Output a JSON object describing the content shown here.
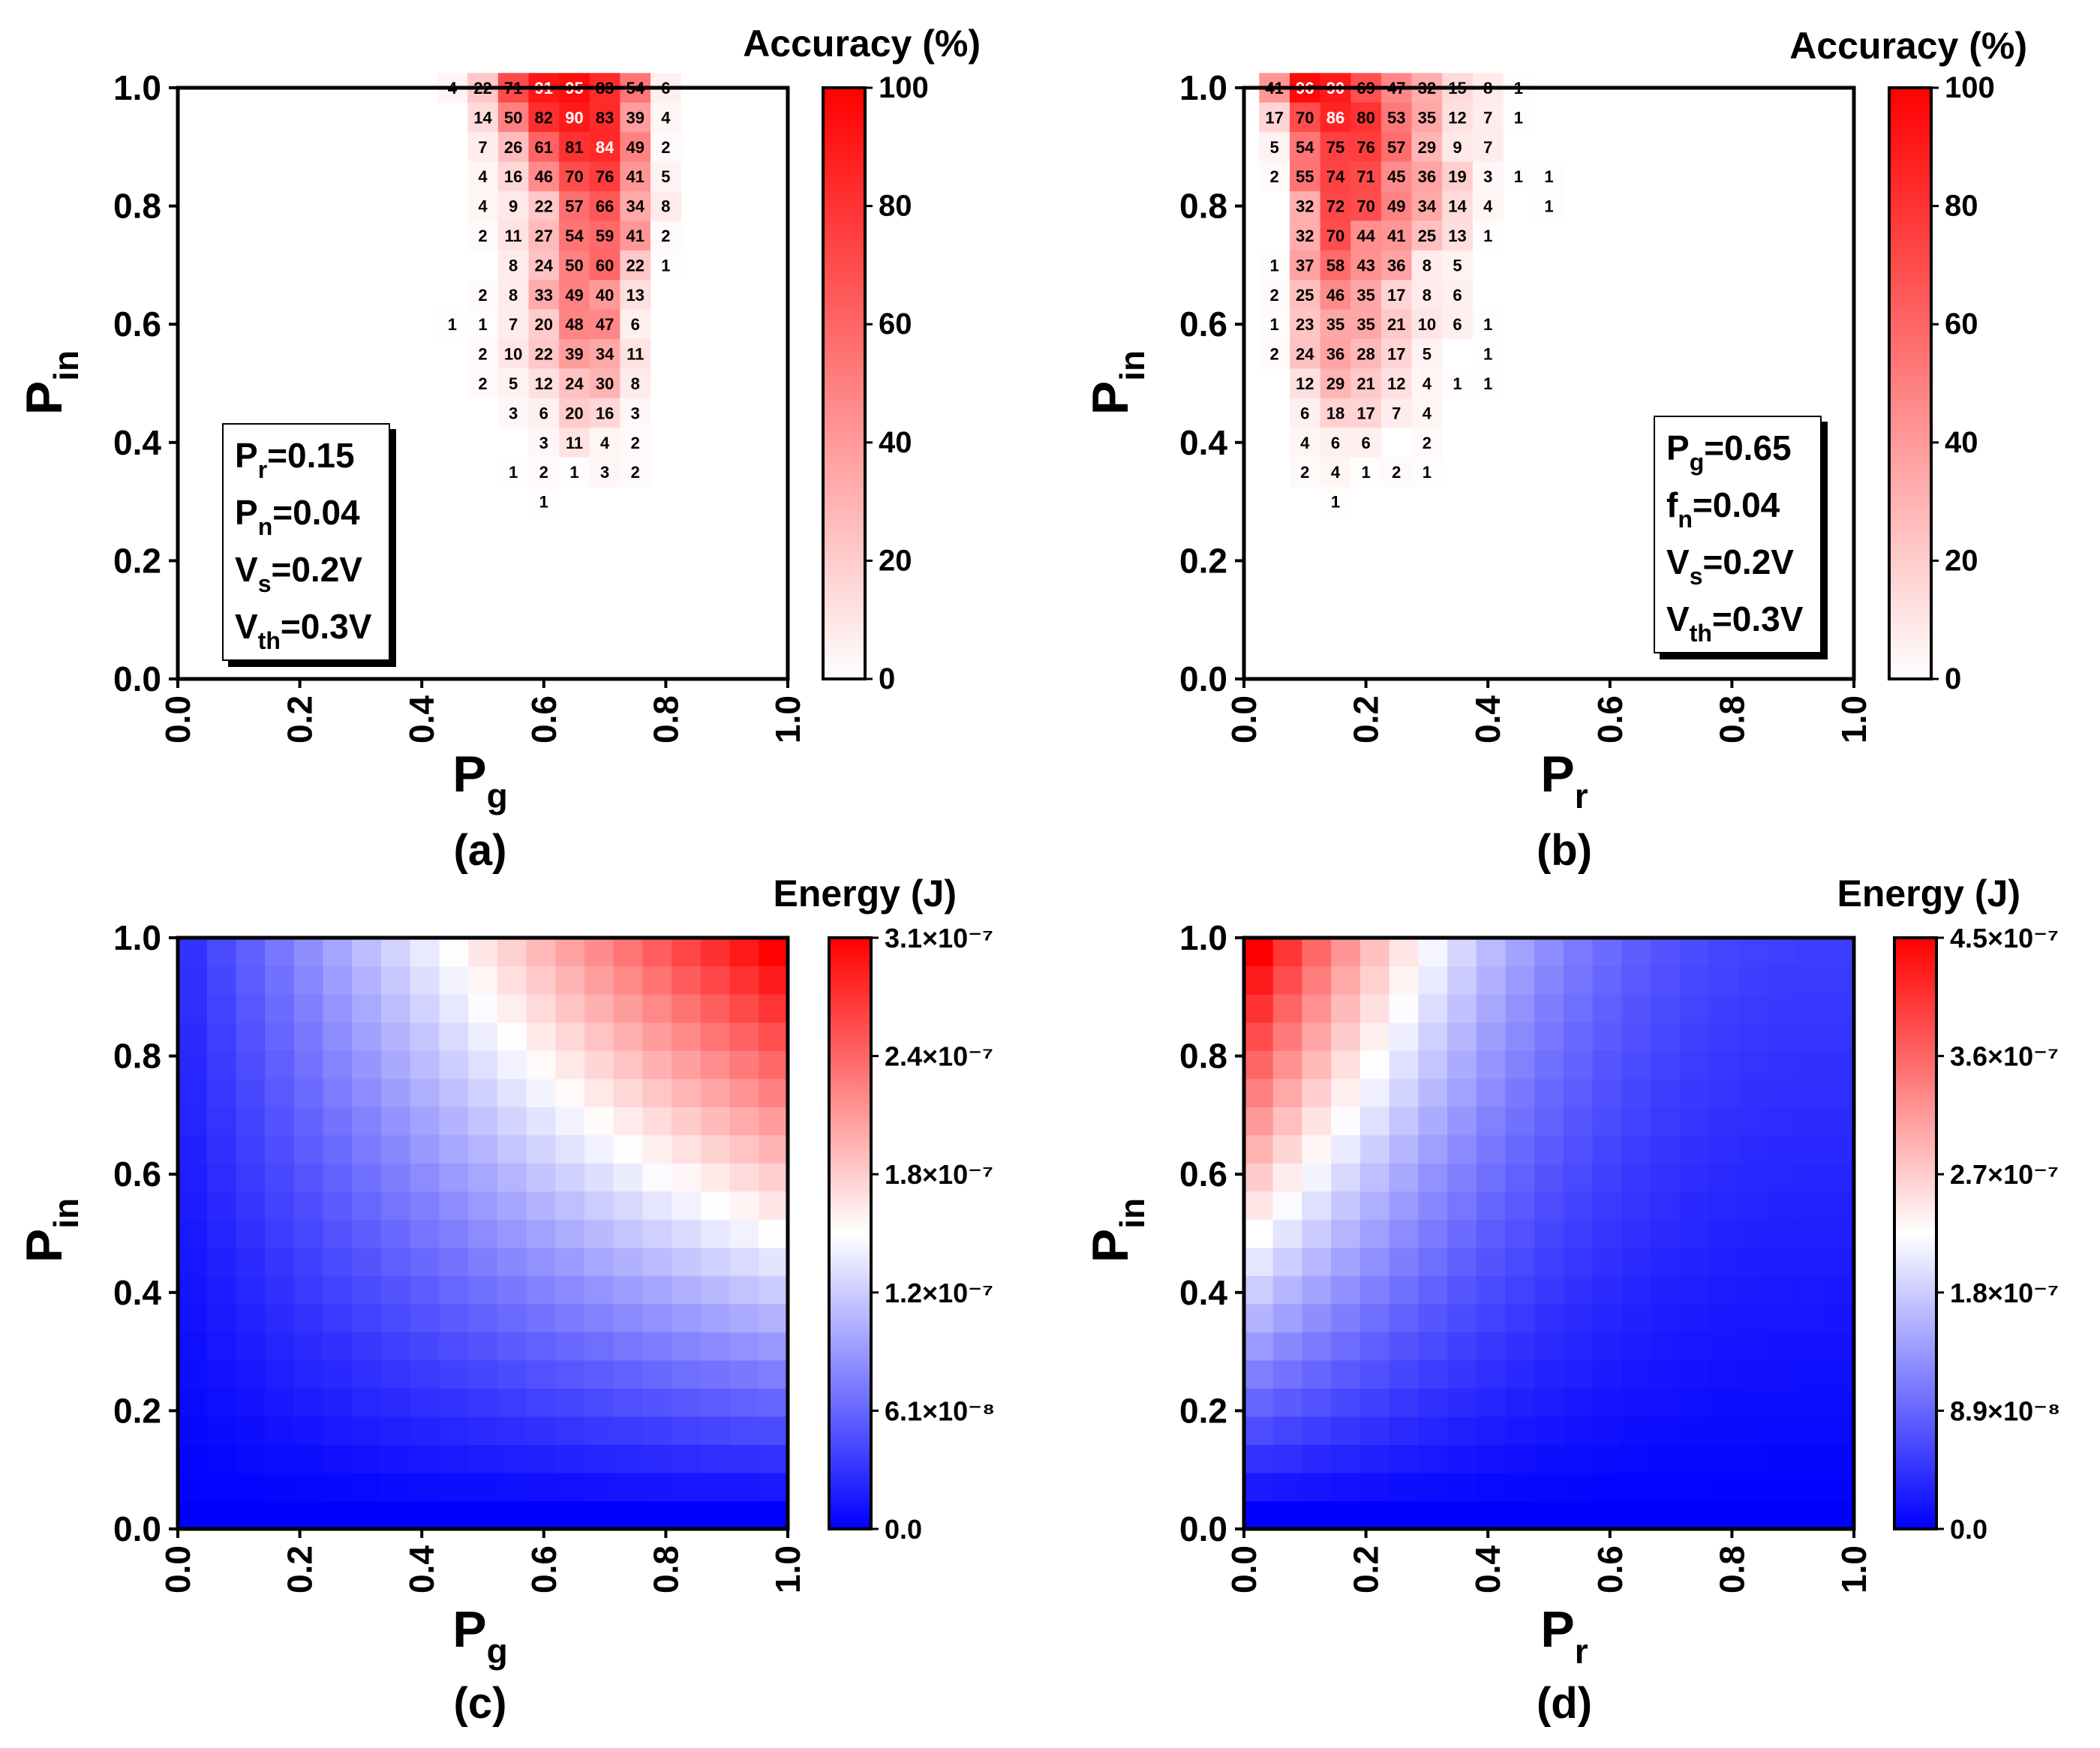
{
  "figure": {
    "panel_labels": [
      "(a)",
      "(b)",
      "(c)",
      "(d)"
    ]
  },
  "colors": {
    "red": "#ff0000",
    "white": "#ffffff",
    "blue": "#0000ff",
    "frame": "#000000"
  },
  "panels": {
    "a": {
      "colorbar_title": "Accuracy (%)",
      "colorbar_ticks": [
        "0",
        "20",
        "40",
        "60",
        "80",
        "100"
      ],
      "params": [
        {
          "base": "P",
          "sub": "r",
          "rest": "=0.15"
        },
        {
          "base": "P",
          "sub": "n",
          "rest": "=0.04"
        },
        {
          "base": "V",
          "sub": "s",
          "rest": "=0.2V"
        },
        {
          "base": "V",
          "sub": "th",
          "rest": "=0.3V"
        }
      ]
    },
    "b": {
      "colorbar_title": "Accuracy (%)",
      "colorbar_ticks": [
        "0",
        "20",
        "40",
        "60",
        "80",
        "100"
      ],
      "params": [
        {
          "base": "P",
          "sub": "g",
          "rest": "=0.65"
        },
        {
          "base": "f",
          "sub": "n",
          "rest": "=0.04"
        },
        {
          "base": "V",
          "sub": "s",
          "rest": "=0.2V"
        },
        {
          "base": "V",
          "sub": "th",
          "rest": "=0.3V"
        }
      ]
    },
    "c": {
      "colorbar_title": "Energy (J)",
      "colorbar_ticks": [
        "0.0",
        "6.1×10⁻⁸",
        "1.2×10⁻⁷",
        "1.8×10⁻⁷",
        "2.4×10⁻⁷",
        "3.1×10⁻⁷"
      ]
    },
    "d": {
      "colorbar_title": "Energy (J)",
      "colorbar_ticks": [
        "0.0",
        "8.9×10⁻⁸",
        "1.8×10⁻⁷",
        "2.7×10⁻⁷",
        "3.6×10⁻⁷",
        "4.5×10⁻⁷"
      ]
    }
  },
  "chart_data": [
    {
      "id": "a",
      "type": "heatmap",
      "title": "Accuracy (%)",
      "xlabel": "P_g",
      "ylabel": "P_in",
      "xlim": [
        0,
        1
      ],
      "ylim": [
        0,
        1
      ],
      "xticks": [
        "0.0",
        "0.2",
        "0.4",
        "0.6",
        "0.8",
        "1.0"
      ],
      "yticks": [
        "0.0",
        "0.2",
        "0.4",
        "0.6",
        "0.8",
        "1.0"
      ],
      "grid": "20x20 cells of width 0.05; cells not listed are 0 / empty",
      "cell_width": 0.05,
      "color_range": [
        0,
        100
      ],
      "colormap": "white-to-red",
      "rows": [
        {
          "y": 1.0,
          "x0": 0.45,
          "values": [
            4,
            22,
            71,
            91,
            95,
            83,
            54,
            6
          ]
        },
        {
          "y": 0.95,
          "x0": 0.5,
          "values": [
            14,
            50,
            82,
            90,
            83,
            39,
            4
          ]
        },
        {
          "y": 0.9,
          "x0": 0.5,
          "values": [
            7,
            26,
            61,
            81,
            84,
            49,
            2
          ]
        },
        {
          "y": 0.85,
          "x0": 0.5,
          "values": [
            4,
            16,
            46,
            70,
            76,
            41,
            5
          ]
        },
        {
          "y": 0.8,
          "x0": 0.5,
          "values": [
            4,
            9,
            22,
            57,
            66,
            34,
            8
          ]
        },
        {
          "y": 0.75,
          "x0": 0.5,
          "values": [
            2,
            11,
            27,
            54,
            59,
            41,
            2
          ]
        },
        {
          "y": 0.7,
          "x0": 0.55,
          "values": [
            8,
            24,
            50,
            60,
            22,
            1
          ]
        },
        {
          "y": 0.65,
          "x0": 0.5,
          "values": [
            2,
            8,
            33,
            49,
            40,
            13
          ]
        },
        {
          "y": 0.6,
          "x0": 0.45,
          "values": [
            1,
            1,
            7,
            20,
            48,
            47,
            6
          ]
        },
        {
          "y": 0.55,
          "x0": 0.5,
          "values": [
            2,
            10,
            22,
            39,
            34,
            11
          ]
        },
        {
          "y": 0.5,
          "x0": 0.5,
          "values": [
            2,
            5,
            12,
            24,
            30,
            8
          ]
        },
        {
          "y": 0.45,
          "x0": 0.55,
          "values": [
            3,
            6,
            20,
            16,
            3
          ]
        },
        {
          "y": 0.4,
          "x0": 0.6,
          "values": [
            3,
            11,
            4,
            2
          ]
        },
        {
          "y": 0.35,
          "x0": 0.55,
          "values": [
            1,
            2,
            1,
            3,
            2
          ]
        },
        {
          "y": 0.3,
          "x0": 0.6,
          "values": [
            1
          ]
        }
      ]
    },
    {
      "id": "b",
      "type": "heatmap",
      "title": "Accuracy (%)",
      "xlabel": "P_r",
      "ylabel": "P_in",
      "xlim": [
        0,
        1
      ],
      "ylim": [
        0,
        1
      ],
      "xticks": [
        "0.0",
        "0.2",
        "0.4",
        "0.6",
        "0.8",
        "1.0"
      ],
      "yticks": [
        "0.0",
        "0.2",
        "0.4",
        "0.6",
        "0.8",
        "1.0"
      ],
      "grid": "20x20 cells of width 0.05; cells not listed are 0 / empty",
      "cell_width": 0.05,
      "color_range": [
        0,
        100
      ],
      "colormap": "white-to-red",
      "rows": [
        {
          "y": 1.0,
          "x0": 0.05,
          "values": [
            41,
            96,
            90,
            69,
            47,
            32,
            15,
            8,
            1
          ]
        },
        {
          "y": 0.95,
          "x0": 0.05,
          "values": [
            17,
            70,
            86,
            80,
            53,
            35,
            12,
            7,
            1
          ]
        },
        {
          "y": 0.9,
          "x0": 0.05,
          "values": [
            5,
            54,
            75,
            76,
            57,
            29,
            9,
            7
          ]
        },
        {
          "y": 0.85,
          "x0": 0.05,
          "values": [
            2,
            55,
            74,
            71,
            45,
            36,
            19,
            3,
            1,
            1
          ]
        },
        {
          "y": 0.8,
          "x0": 0.1,
          "values": [
            32,
            72,
            70,
            49,
            34,
            14,
            4,
            null,
            1
          ]
        },
        {
          "y": 0.75,
          "x0": 0.1,
          "values": [
            32,
            70,
            44,
            41,
            25,
            13,
            1
          ]
        },
        {
          "y": 0.7,
          "x0": 0.05,
          "values": [
            1,
            37,
            58,
            43,
            36,
            8,
            5
          ]
        },
        {
          "y": 0.65,
          "x0": 0.05,
          "values": [
            2,
            25,
            46,
            35,
            17,
            8,
            6
          ]
        },
        {
          "y": 0.6,
          "x0": 0.05,
          "values": [
            1,
            23,
            35,
            35,
            21,
            10,
            6,
            1
          ]
        },
        {
          "y": 0.55,
          "x0": 0.05,
          "values": [
            2,
            24,
            36,
            28,
            17,
            5,
            null,
            1
          ]
        },
        {
          "y": 0.5,
          "x0": 0.1,
          "values": [
            12,
            29,
            21,
            12,
            4,
            1,
            1
          ]
        },
        {
          "y": 0.45,
          "x0": 0.1,
          "values": [
            6,
            18,
            17,
            7,
            4
          ]
        },
        {
          "y": 0.4,
          "x0": 0.1,
          "values": [
            4,
            6,
            6,
            null,
            2
          ]
        },
        {
          "y": 0.35,
          "x0": 0.1,
          "values": [
            2,
            4,
            1,
            2,
            1
          ]
        },
        {
          "y": 0.3,
          "x0": 0.15,
          "values": [
            1
          ]
        }
      ]
    },
    {
      "id": "c",
      "type": "heatmap",
      "title": "Energy (J)",
      "xlabel": "P_g",
      "ylabel": "P_in",
      "xlim": [
        0,
        1
      ],
      "ylim": [
        0,
        1
      ],
      "xticks": [
        "0.0",
        "0.2",
        "0.4",
        "0.6",
        "0.8",
        "1.0"
      ],
      "yticks": [
        "0.0",
        "0.2",
        "0.4",
        "0.6",
        "0.8",
        "1.0"
      ],
      "grid_size": 21,
      "color_range": [
        0,
        3.1e-07
      ],
      "colormap": "blue-white-red",
      "model": "E(Pg, Pin) ≈ 3.1e-7 · Pin · (0.9·Pg + 0.1); values read approximately from color scale",
      "corner_values": {
        "Pg0_Pin0": 0.0,
        "Pg1_Pin0": 0.0,
        "Pg0_Pin1": 3.1e-08,
        "Pg1_Pin1": 3.1e-07
      }
    },
    {
      "id": "d",
      "type": "heatmap",
      "title": "Energy (J)",
      "xlabel": "P_r",
      "ylabel": "P_in",
      "xlim": [
        0,
        1
      ],
      "ylim": [
        0,
        1
      ],
      "xticks": [
        "0.0",
        "0.2",
        "0.4",
        "0.6",
        "0.8",
        "1.0"
      ],
      "yticks": [
        "0.0",
        "0.2",
        "0.4",
        "0.6",
        "0.8",
        "1.0"
      ],
      "grid_size": 21,
      "color_range": [
        0,
        4.5e-07
      ],
      "colormap": "blue-white-red",
      "model": "E(Pr, Pin) ≈ 4.5e-7 · Pin · (0.12 + 0.88·(1 − Pr)^2.5); values read approximately from color scale",
      "corner_values": {
        "Pr0_Pin0": 0.0,
        "Pr1_Pin0": 0.0,
        "Pr0_Pin1": 4.5e-07,
        "Pr1_Pin1": 5.4e-08
      }
    }
  ]
}
